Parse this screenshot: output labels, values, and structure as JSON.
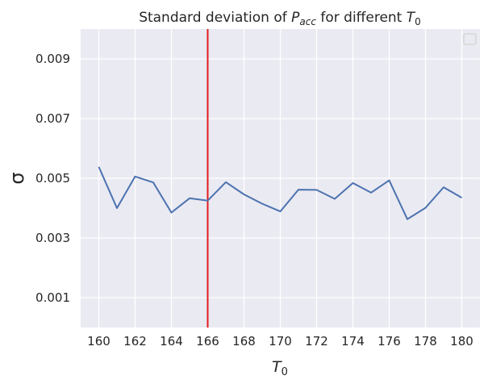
{
  "chart_data": {
    "type": "line",
    "title": {
      "prefix": "Standard deviation of ",
      "sym1": "P",
      "sub1": "acc",
      "middle": " for different ",
      "sym2": "T",
      "sub2": "0"
    },
    "xlabel": {
      "sym": "T",
      "sub": "0"
    },
    "ylabel": "σ",
    "x_ticks": [
      "160",
      "162",
      "164",
      "166",
      "168",
      "170",
      "172",
      "174",
      "176",
      "178",
      "180"
    ],
    "y_ticks": [
      "0.001",
      "0.003",
      "0.005",
      "0.007",
      "0.009"
    ],
    "xlim": [
      159,
      181
    ],
    "ylim": [
      0.0,
      0.01
    ],
    "grid": true,
    "legend": "top-right (empty)",
    "series": [
      {
        "color": "#4c72b0",
        "x": [
          160,
          161,
          162,
          163,
          164,
          165,
          166,
          167,
          168,
          169,
          170,
          171,
          172,
          173,
          174,
          175,
          176,
          177,
          178,
          179,
          180
        ],
        "y": [
          0.00538,
          0.004,
          0.00506,
          0.00486,
          0.00385,
          0.00433,
          0.00425,
          0.00487,
          0.00446,
          0.00415,
          0.00389,
          0.00462,
          0.00461,
          0.00431,
          0.00484,
          0.00452,
          0.00493,
          0.00363,
          0.00401,
          0.0047,
          0.00435
        ]
      }
    ],
    "vline": {
      "x": 166,
      "color": "#e41a1c"
    }
  }
}
